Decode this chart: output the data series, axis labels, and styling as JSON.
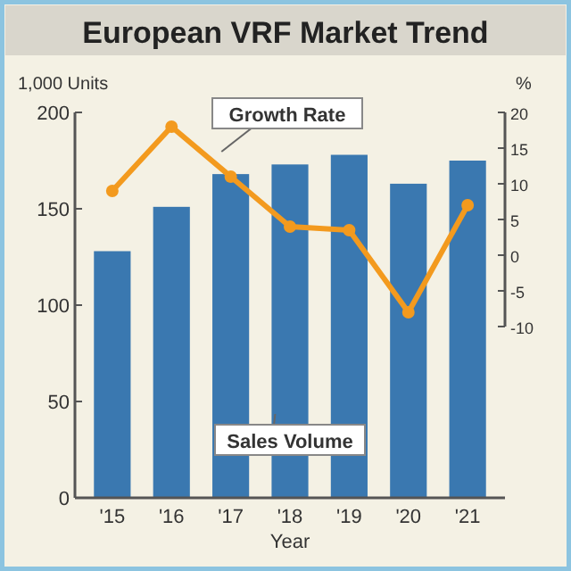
{
  "chart_data": {
    "type": "bar",
    "title": "European VRF Market Trend",
    "xlabel": "Year",
    "ylabel": "1,000 Units",
    "y2label": "%",
    "categories": [
      "'15",
      "'16",
      "'17",
      "'18",
      "'19",
      "'20",
      "'21"
    ],
    "series": [
      {
        "name": "Sales Volume",
        "color": "#3a78b0",
        "values": [
          128,
          151,
          168,
          173,
          178,
          163,
          175
        ]
      },
      {
        "name": "Growth Rate",
        "type": "line",
        "axis": "y2",
        "color": "#f39a1e",
        "values": [
          9,
          18,
          11,
          4,
          3.5,
          -8,
          7
        ]
      }
    ],
    "ylim": [
      0,
      200
    ],
    "yticks": [
      0,
      50,
      100,
      150,
      200
    ],
    "y2lim": [
      -10,
      20
    ],
    "y2ticks": [
      -10,
      -5,
      0,
      5,
      10,
      15,
      20
    ],
    "marker": "circle",
    "legend": false,
    "grid": false
  }
}
